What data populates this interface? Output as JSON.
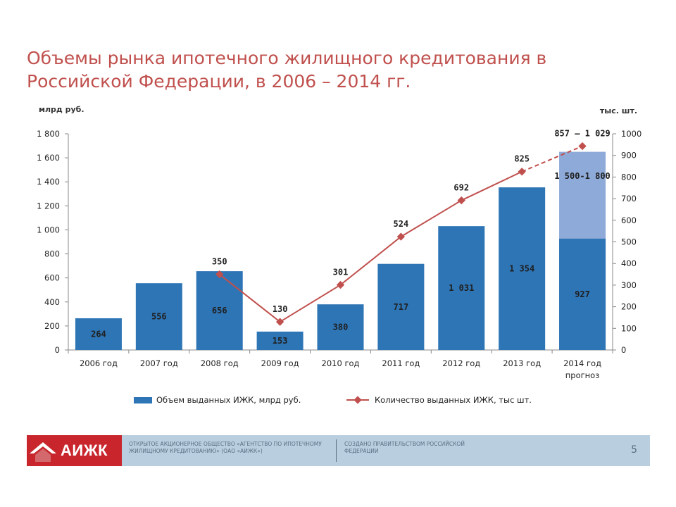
{
  "title": "Объемы рынка ипотечного жилищного кредитования в Российской Федерации, в 2006 – 2014 гг.",
  "chart_data": {
    "type": "bar+line",
    "left_axis_label": "млрд руб.",
    "right_axis_label": "тыс. шт.",
    "left_ylim": [
      0,
      1800
    ],
    "left_ticks": [
      0,
      200,
      400,
      600,
      800,
      1000,
      1200,
      1400,
      1600,
      1800
    ],
    "left_tick_labels": [
      "0",
      "200",
      "400",
      "600",
      "800",
      "1 000",
      "1 200",
      "1 400",
      "1 600",
      "1 800"
    ],
    "right_ylim": [
      0,
      1000
    ],
    "right_ticks": [
      0,
      100,
      200,
      300,
      400,
      500,
      600,
      700,
      800,
      900,
      1000
    ],
    "right_tick_labels": [
      "0",
      "100",
      "200",
      "300",
      "400",
      "500",
      "600",
      "700",
      "800",
      "900",
      "1000"
    ],
    "categories": [
      "2006 год",
      "2007 год",
      "2008 год",
      "2009 год",
      "2010 год",
      "2011 год",
      "2012 год",
      "2013 год",
      "2014 год прогноз"
    ],
    "bar_series": {
      "name": "Объем выданных ИЖК, млрд руб.",
      "color": "#2e75b6",
      "values": [
        264,
        556,
        656,
        153,
        380,
        717,
        1031,
        1354,
        927
      ],
      "labels": [
        "264",
        "556",
        "656",
        "153",
        "380",
        "717",
        "1 031",
        "1 354",
        "927"
      ]
    },
    "forecast_bar": {
      "index": 8,
      "top_value": 1650,
      "label": "1 500-1 800",
      "color": "#8eaad8"
    },
    "line_series": {
      "name": "Количество выданных ИЖК, тыс шт.",
      "color": "#c0504d",
      "values": [
        null,
        null,
        350,
        130,
        301,
        524,
        692,
        825,
        943
      ],
      "labels": [
        null,
        null,
        "350",
        "130",
        "301",
        "524",
        "692",
        "825",
        "857 – 1 029"
      ],
      "dashed_from_index": 7
    }
  },
  "footer": {
    "logo": "АИЖК",
    "org": "ОТКРЫТОЕ АКЦИОНЕРНОЕ ОБЩЕСТВО «АГЕНТСТВО ПО ИПОТЕЧНОМУ ЖИЛИЩНОМУ КРЕДИТОВАНИЮ» (ОАО «АИЖК»)",
    "gov": "СОЗДАНО ПРАВИТЕЛЬСТВОМ РОССИЙСКОЙ ФЕДЕРАЦИИ",
    "page": "5"
  }
}
